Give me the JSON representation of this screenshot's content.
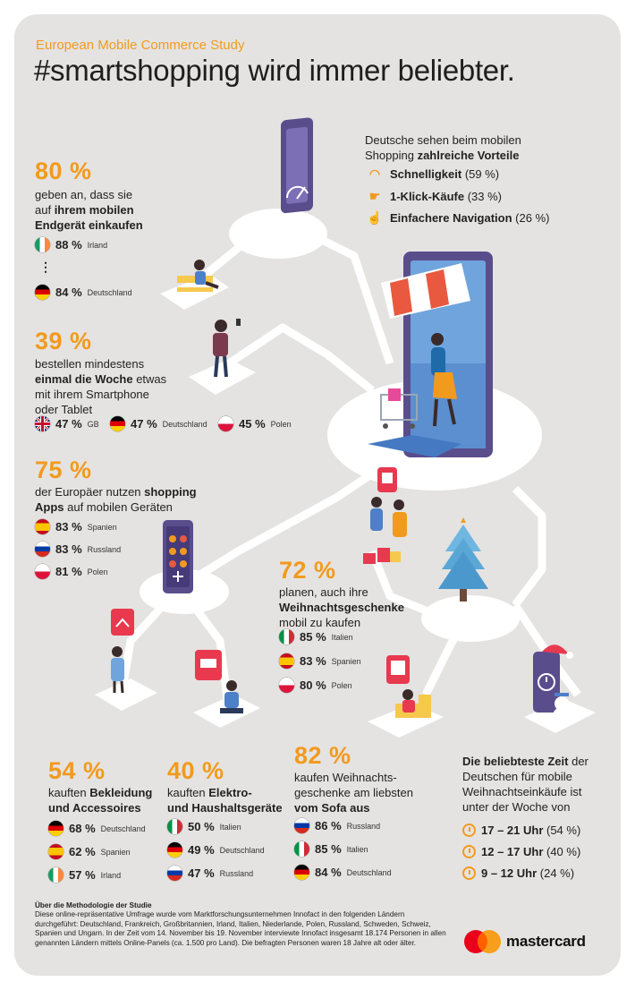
{
  "header": {
    "subtitle": "European Mobile Commerce Study",
    "title": "#smartshopping wird immer beliebter."
  },
  "advantages": {
    "intro_line1": "Deutsche sehen beim mobilen",
    "intro_line2_a": "Shopping ",
    "intro_line2_b": "zahlreiche Vorteile",
    "items": [
      {
        "label": "Schnelligkeit",
        "value": "(59 %)",
        "icon": "speedometer-icon"
      },
      {
        "label": "1-Klick-Käufe",
        "value": "(33 %)",
        "icon": "one-click-hand-icon"
      },
      {
        "label": "Einfachere Navigation",
        "value": "(26 %)",
        "icon": "pointing-hand-icon"
      }
    ]
  },
  "stat80": {
    "big": "80 %",
    "line1": "geben an, dass sie",
    "line2_a": "auf ",
    "line2_b": "ihrem mobilen",
    "line3": "Endgerät einkaufen",
    "ellipsis": "⋮",
    "rows": [
      {
        "pct": "88 %",
        "country": "Irland",
        "flag": "ireland-flag"
      },
      {
        "pct": "84 %",
        "country": "Deutschland",
        "flag": "germany-flag"
      }
    ]
  },
  "stat39": {
    "big": "39 %",
    "line1": "bestellen mindestens",
    "line2_a": "einmal die Woche",
    "line2_b": " etwas",
    "line3": "mit ihrem Smartphone",
    "line4": "oder Tablet",
    "rows": [
      {
        "pct": "47 %",
        "country": "GB",
        "flag": "uk-flag"
      },
      {
        "pct": "47 %",
        "country": "Deutschland",
        "flag": "germany-flag"
      },
      {
        "pct": "45 %",
        "country": "Polen",
        "flag": "poland-flag"
      }
    ]
  },
  "stat75": {
    "big": "75 %",
    "line1_a": "der Europäer nutzen ",
    "line1_b": "shopping",
    "line2_a": "Apps",
    "line2_b": " auf mobilen Geräten",
    "rows": [
      {
        "pct": "83 %",
        "country": "Spanien",
        "flag": "spain-flag"
      },
      {
        "pct": "83 %",
        "country": "Russland",
        "flag": "russia-flag"
      },
      {
        "pct": "81 %",
        "country": "Polen",
        "flag": "poland-flag"
      }
    ]
  },
  "stat72": {
    "big": "72 %",
    "line1": "planen, auch ihre",
    "line2": "Weihnachtsgeschenke",
    "line3": "mobil zu kaufen",
    "rows": [
      {
        "pct": "85 %",
        "country": "Italien",
        "flag": "italy-flag"
      },
      {
        "pct": "83 %",
        "country": "Spanien",
        "flag": "spain-flag"
      },
      {
        "pct": "80 %",
        "country": "Polen",
        "flag": "poland-flag"
      }
    ]
  },
  "stat54": {
    "big": "54 %",
    "line1": "kauften ",
    "line1_b": "Bekleidung",
    "line2": "und Accessoires",
    "rows": [
      {
        "pct": "68 %",
        "country": "Deutschland",
        "flag": "germany-flag"
      },
      {
        "pct": "62 %",
        "country": "Spanien",
        "flag": "spain-flag"
      },
      {
        "pct": "57 %",
        "country": "Irland",
        "flag": "ireland-flag"
      }
    ]
  },
  "stat40": {
    "big": "40 %",
    "line1": "kauften ",
    "line1_b": "Elektro-",
    "line2": "und Haushaltsgeräte",
    "rows": [
      {
        "pct": "50 %",
        "country": "Italien",
        "flag": "italy-flag"
      },
      {
        "pct": "49 %",
        "country": "Deutschland",
        "flag": "germany-flag"
      },
      {
        "pct": "47 %",
        "country": "Russland",
        "flag": "russia-flag"
      }
    ]
  },
  "stat82": {
    "big": "82 %",
    "line1": "kaufen Weihnachts-",
    "line2": "geschenke am liebsten",
    "line3": "vom Sofa aus",
    "rows": [
      {
        "pct": "86 %",
        "country": "Russland",
        "flag": "russia-flag"
      },
      {
        "pct": "85 %",
        "country": "Italien",
        "flag": "italy-flag"
      },
      {
        "pct": "84 %",
        "country": "Deutschland",
        "flag": "germany-flag"
      }
    ]
  },
  "times": {
    "line1_a": "Die beliebteste Zeit",
    "line1_b": " der",
    "line2": "Deutschen für mobile",
    "line3": "Weihnachtseinkäufe ist",
    "line4": "unter der Woche von",
    "rows": [
      {
        "time": "17 – 21 Uhr",
        "value": "(54 %)"
      },
      {
        "time": "12 – 17 Uhr",
        "value": "(40 %)"
      },
      {
        "time": "9 – 12 Uhr",
        "value": "(24 %)"
      }
    ]
  },
  "methodology": {
    "heading": "Über die Methodologie der Studie",
    "body": "Diese online-repräsentative Umfrage wurde vom Marktforschungsunternehmen Innofact in den folgenden Ländern durchgeführt: Deutschland, Frankreich, Großbritannien, Irland, Italien, Niederlande, Polen, Russland, Schweden, Schweiz, Spanien und Ungarn. In der Zeit vom 14. November bis 19. November interviewte Innofact insgesamt 18.174 Personen in allen genannten Ländern mittels Online-Panels (ca. 1.500 pro Land). Die befragten Personen waren 18 Jahre alt oder älter."
  },
  "brand": {
    "name": "mastercard"
  },
  "colors": {
    "accent": "#f29a1d",
    "background": "#e4e3e1",
    "phone": "#5a4d8c",
    "mc_red": "#eb001b",
    "mc_yellow": "#f79e1b"
  }
}
